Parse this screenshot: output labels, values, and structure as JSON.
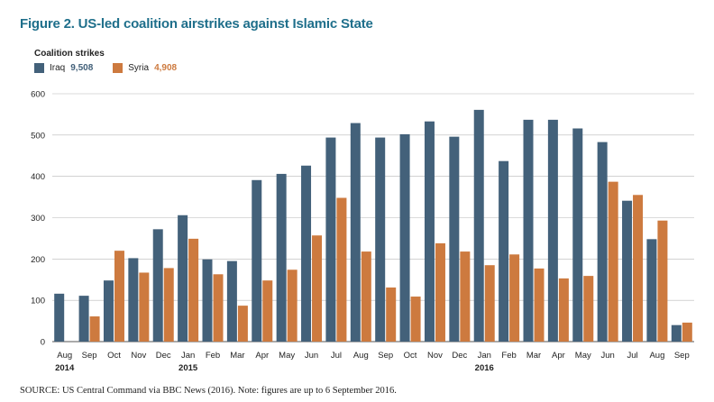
{
  "figure": {
    "title": "Figure 2. US-led coalition airstrikes against Islamic State",
    "subtitle": "Coalition strikes",
    "source": "SOURCE: US Central Command via BBC News (2016). Note: figures are up to 6 September 2016."
  },
  "legend": {
    "iraq": {
      "name": "Iraq",
      "total": "9,508",
      "color": "#43617a"
    },
    "syria": {
      "name": "Syria",
      "total": "4,908",
      "color": "#cd7a3f"
    }
  },
  "chart_data": {
    "type": "bar",
    "title": "Figure 2. US-led coalition airstrikes against Islamic State",
    "ylabel": "Coalition strikes",
    "xlabel": "",
    "ylim": [
      0,
      600
    ],
    "yticks": [
      0,
      100,
      200,
      300,
      400,
      500,
      600
    ],
    "grid": true,
    "legend_position": "top-left",
    "categories": [
      "Aug",
      "Sep",
      "Oct",
      "Nov",
      "Dec",
      "Jan",
      "Feb",
      "Mar",
      "Apr",
      "May",
      "Jun",
      "Jul",
      "Aug",
      "Sep",
      "Oct",
      "Nov",
      "Dec",
      "Jan",
      "Feb",
      "Mar",
      "Apr",
      "May",
      "Jun",
      "Jul",
      "Aug",
      "Sep"
    ],
    "year_labels": [
      {
        "index": 0,
        "label": "2014"
      },
      {
        "index": 5,
        "label": "2015"
      },
      {
        "index": 17,
        "label": "2016"
      }
    ],
    "series": [
      {
        "name": "Iraq",
        "total": "9,508",
        "color": "#43617a",
        "values": [
          116,
          111,
          148,
          202,
          272,
          306,
          199,
          195,
          391,
          406,
          426,
          494,
          529,
          494,
          502,
          533,
          496,
          561,
          437,
          537,
          537,
          516,
          483,
          341,
          248,
          40
        ]
      },
      {
        "name": "Syria",
        "total": "4,908",
        "color": "#cd7a3f",
        "values": [
          null,
          61,
          220,
          167,
          178,
          249,
          163,
          87,
          148,
          174,
          257,
          348,
          218,
          131,
          109,
          238,
          218,
          185,
          211,
          177,
          153,
          159,
          387,
          355,
          293,
          46
        ]
      }
    ]
  }
}
